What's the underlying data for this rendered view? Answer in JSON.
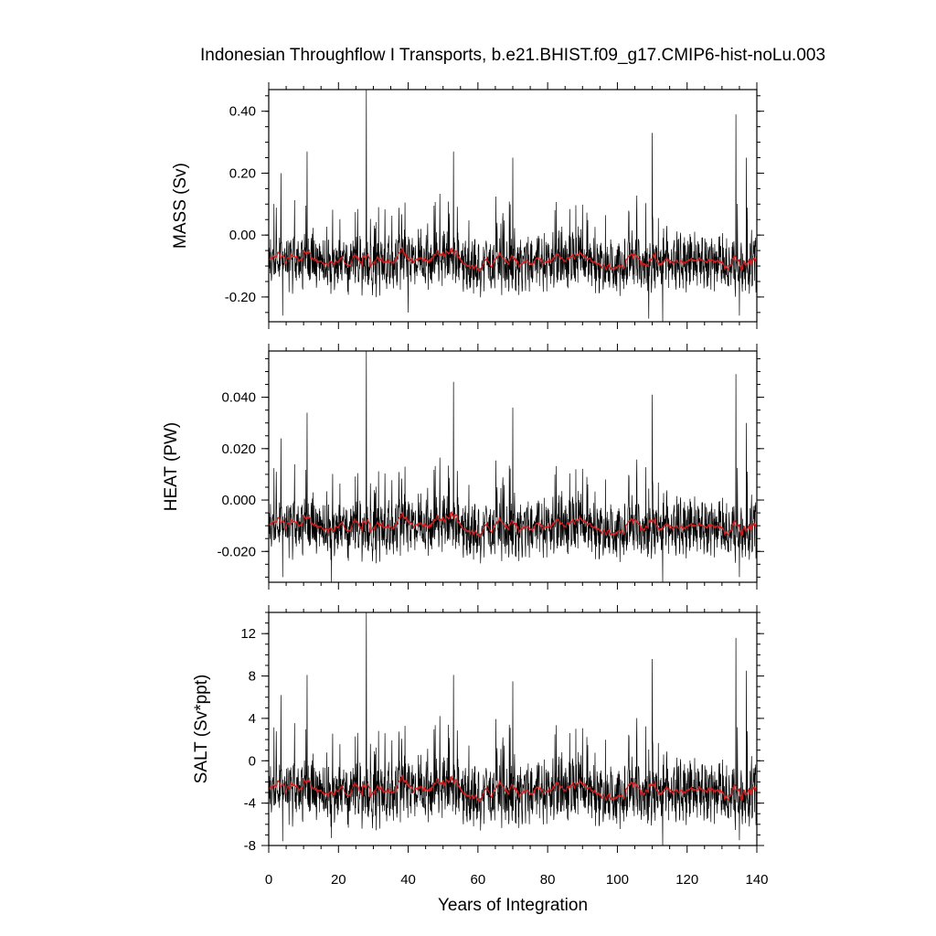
{
  "chart_data": {
    "type": "line",
    "title": "Indonesian Throughflow I Transports, b.e21.BHIST.f09_g17.CMIP6-hist-noLu.003",
    "xlabel": "Years of Integration",
    "xlim": [
      0,
      140
    ],
    "xticks": [
      "0",
      "20",
      "40",
      "60",
      "80",
      "100",
      "120",
      "140"
    ],
    "colors": {
      "raw": "#000000",
      "running_mean": "#d62020"
    },
    "panels": [
      {
        "ylabel": "MASS (Sv)",
        "ylim": [
          -0.28,
          0.47
        ],
        "yticks": [
          0.4,
          0.2,
          0.0,
          -0.2
        ],
        "yticklabels": [
          "0.40",
          "0.20",
          "0.00",
          "-0.20"
        ],
        "baseline": -0.09,
        "noise": 0.065,
        "peaks": [
          [
            3.5,
            0.2
          ],
          [
            11,
            0.27
          ],
          [
            28,
            0.47
          ],
          [
            53,
            0.27
          ],
          [
            70,
            0.25
          ],
          [
            110,
            0.33
          ],
          [
            134,
            0.39
          ],
          [
            137,
            0.25
          ]
        ],
        "troughs": [
          [
            4,
            -0.26
          ],
          [
            40,
            -0.25
          ],
          [
            109,
            -0.27
          ],
          [
            113,
            -0.28
          ],
          [
            135,
            -0.26
          ]
        ]
      },
      {
        "ylabel": "HEAT (PW)",
        "ylim": [
          -0.032,
          0.058
        ],
        "yticks": [
          0.04,
          0.02,
          0.0,
          -0.02
        ],
        "yticklabels": [
          "0.040",
          "0.020",
          "0.000",
          "-0.020"
        ],
        "baseline": -0.011,
        "noise": 0.008,
        "peaks": [
          [
            3.5,
            0.024
          ],
          [
            11,
            0.034
          ],
          [
            28,
            0.058
          ],
          [
            53,
            0.046
          ],
          [
            70,
            0.036
          ],
          [
            110,
            0.041
          ],
          [
            134,
            0.049
          ],
          [
            137,
            0.03
          ]
        ],
        "troughs": [
          [
            4,
            -0.03
          ],
          [
            18,
            -0.032
          ],
          [
            113,
            -0.032
          ],
          [
            135,
            -0.03
          ]
        ]
      },
      {
        "ylabel": "SALT (Sv*ppt)",
        "ylim": [
          -8,
          14
        ],
        "yticks": [
          12,
          8,
          4,
          0,
          -4,
          -8
        ],
        "yticklabels": [
          "12",
          "8",
          "4",
          "0",
          "-4",
          "-8"
        ],
        "baseline": -3,
        "noise": 2.1,
        "peaks": [
          [
            3.5,
            6.2
          ],
          [
            11,
            8.1
          ],
          [
            28,
            14
          ],
          [
            53,
            8.1
          ],
          [
            70,
            7.5
          ],
          [
            110,
            9.6
          ],
          [
            134,
            11.6
          ],
          [
            137,
            8.5
          ]
        ],
        "troughs": [
          [
            4,
            -7.6
          ],
          [
            18,
            -7.3
          ],
          [
            113,
            -8
          ],
          [
            135,
            -7.5
          ]
        ]
      }
    ]
  }
}
